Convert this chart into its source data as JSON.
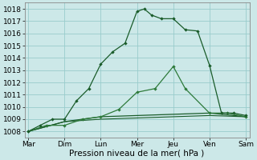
{
  "xlabel": "Pression niveau de la mer( hPa )",
  "background_color": "#cce8e8",
  "grid_color": "#99cccc",
  "line_color_dark": "#1a5c2a",
  "line_color_medium": "#2d7a3a",
  "ylim": [
    1007.5,
    1018.5
  ],
  "xlim": [
    -0.1,
    6.1
  ],
  "x_labels": [
    "Mar",
    "Dim",
    "Lun",
    "Mer",
    "Jeu",
    "Ven",
    "Sam"
  ],
  "x_ticks": [
    0,
    1,
    2,
    3,
    4,
    5,
    6
  ],
  "yticks": [
    1008,
    1009,
    1010,
    1011,
    1012,
    1013,
    1014,
    1015,
    1016,
    1017,
    1018
  ],
  "line1_x": [
    0,
    0.33,
    0.67,
    1.0,
    1.33,
    1.67,
    2.0,
    2.33,
    2.67,
    3.0,
    3.2,
    3.4,
    3.67,
    4.0,
    4.33,
    4.67,
    5.0,
    5.33,
    5.67,
    6.0
  ],
  "line1_y": [
    1008.0,
    1008.5,
    1009.0,
    1009.0,
    1010.5,
    1011.5,
    1013.5,
    1014.5,
    1015.2,
    1017.8,
    1018.0,
    1017.5,
    1017.2,
    1017.2,
    1016.3,
    1016.2,
    1013.4,
    1009.5,
    1009.5,
    1009.3
  ],
  "line2_x": [
    0,
    0.5,
    1.0,
    1.5,
    2.0,
    2.5,
    3.0,
    3.5,
    4.0,
    4.33,
    5.0,
    5.5,
    6.0
  ],
  "line2_y": [
    1008.0,
    1008.5,
    1008.5,
    1009.0,
    1009.2,
    1009.8,
    1011.2,
    1011.5,
    1013.3,
    1011.5,
    1009.5,
    1009.5,
    1009.2
  ],
  "line3_x": [
    0,
    1.0,
    2.0,
    3.0,
    4.0,
    5.0,
    6.0
  ],
  "line3_y": [
    1008.0,
    1008.8,
    1009.2,
    1009.3,
    1009.4,
    1009.5,
    1009.2
  ],
  "line4_x": [
    0,
    1.0,
    2.0,
    3.0,
    4.0,
    5.0,
    6.0
  ],
  "line4_y": [
    1008.0,
    1008.8,
    1009.0,
    1009.1,
    1009.2,
    1009.3,
    1009.2
  ],
  "xlabel_fontsize": 7.5,
  "tick_fontsize": 6.5
}
